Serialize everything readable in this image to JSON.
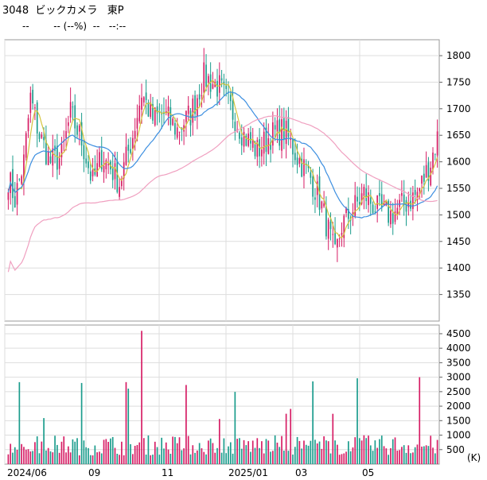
{
  "header": {
    "code": "3048",
    "name": "ビックカメラ",
    "market": "東P",
    "price": "--",
    "change": "-- (--%)",
    "volume": "--",
    "time": "--:--"
  },
  "chart_data": [
    {
      "type": "candlestick",
      "x_labels": [
        "2024/06",
        "09",
        "11",
        "2025/01",
        "03",
        "05"
      ],
      "y_ticks": [
        1350,
        1400,
        1450,
        1500,
        1550,
        1600,
        1650,
        1700,
        1750,
        1800
      ],
      "ylim": [
        1300,
        1830
      ],
      "overlays": [
        {
          "name": "",
          "color": "#d4c43c"
        },
        {
          "name": "",
          "color": "#3b8ee0"
        },
        {
          "name": "",
          "color": "#f0a0c0"
        }
      ],
      "colors": {
        "up": "#d61c64",
        "down": "#1a9c8c"
      }
    },
    {
      "type": "bar",
      "y_ticks": [
        500,
        1000,
        1500,
        2000,
        2500,
        3000,
        3500,
        4000,
        4500
      ],
      "unit": "(K)",
      "ylim": [
        0,
        4800
      ],
      "colors": {
        "up": "#d61c64",
        "down": "#1a9c8c"
      }
    }
  ]
}
